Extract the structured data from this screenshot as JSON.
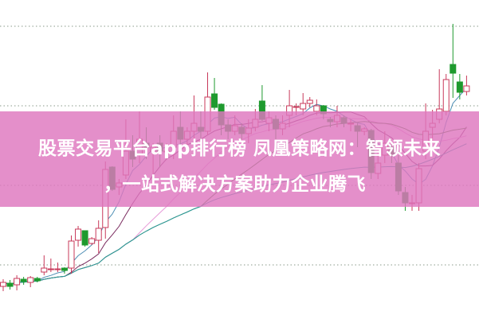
{
  "banner": {
    "title_lines": [
      "股票交易平台app排行榜 凤凰策略网：智领未来",
      "，一站式解决方案助力企业腾飞"
    ],
    "color": "#de76be"
  },
  "chart_data": {
    "type": "candlestick",
    "title": "",
    "xlabel": "",
    "ylabel": "",
    "ylim": [
      0,
      40
    ],
    "grid": true,
    "legend": "none",
    "colors": {
      "up": "#c8385a",
      "down": "#1e9a2e",
      "grid": "#8a9a8a"
    },
    "moving_averages": [
      {
        "period": 5,
        "color": "#4f8fb5"
      },
      {
        "period": 10,
        "color": "#7a2a5e"
      },
      {
        "period": 20,
        "color": "#e79ad8"
      },
      {
        "period": 30,
        "color": "#3a7a2a"
      },
      {
        "period": 60,
        "color": "#2a9aa0"
      }
    ],
    "candles": [
      [
        4.0,
        4.9,
        3.4,
        4.5
      ],
      [
        4.4,
        4.8,
        3.6,
        4.0
      ],
      [
        4.2,
        5.4,
        3.5,
        5.0
      ],
      [
        4.9,
        5.2,
        4.2,
        4.6
      ],
      [
        4.5,
        5.3,
        3.9,
        5.1
      ],
      [
        5.0,
        5.2,
        4.5,
        4.7
      ],
      [
        5.8,
        7.9,
        5.4,
        6.3
      ],
      [
        6.2,
        7.5,
        5.8,
        6.2
      ],
      [
        6.2,
        7.0,
        5.8,
        6.2
      ],
      [
        6.3,
        6.4,
        5.6,
        6.0
      ],
      [
        6.3,
        10.4,
        5.6,
        9.7
      ],
      [
        9.8,
        11.6,
        9.0,
        11.2
      ],
      [
        11.0,
        11.0,
        9.0,
        9.2
      ],
      [
        9.4,
        10.2,
        9.2,
        10.0
      ],
      [
        9.8,
        12.3,
        8.2,
        11.3
      ],
      [
        11.4,
        19.7,
        10.0,
        18.7
      ],
      [
        19.0,
        19.1,
        16.0,
        16.2
      ],
      [
        16.5,
        17.5,
        15.5,
        17.0
      ],
      [
        18.0,
        25.0,
        17.5,
        21.0
      ],
      [
        21.0,
        23.0,
        19.0,
        20.0
      ],
      [
        20.5,
        26.0,
        19.5,
        22.5
      ],
      [
        22.0,
        24.0,
        20.0,
        21.5
      ],
      [
        21.0,
        22.0,
        18.0,
        21.5
      ],
      [
        22.0,
        23.0,
        19.0,
        21.0
      ],
      [
        21.0,
        22.0,
        20.0,
        21.0
      ],
      [
        21.5,
        25.5,
        20.0,
        23.5
      ],
      [
        24.0,
        26.0,
        21.0,
        22.5
      ],
      [
        22.5,
        24.0,
        21.0,
        23.5
      ],
      [
        23.5,
        28.0,
        22.0,
        24.5
      ],
      [
        24.0,
        26.0,
        22.0,
        23.5
      ],
      [
        23.5,
        30.9,
        23.0,
        27.8
      ],
      [
        28.2,
        30.2,
        26.2,
        26.5
      ],
      [
        26.9,
        27.0,
        23.0,
        24.3
      ],
      [
        24.3,
        25.0,
        22.5,
        23.5
      ],
      [
        23.5,
        25.5,
        23.0,
        24.2
      ],
      [
        24.0,
        24.5,
        22.5,
        23.2
      ],
      [
        23.2,
        25.0,
        22.0,
        23.9
      ],
      [
        24.0,
        26.3,
        23.5,
        25.0
      ],
      [
        27.3,
        29.3,
        24.8,
        25.0
      ],
      [
        24.5,
        26.0,
        23.5,
        25.2
      ],
      [
        25.0,
        25.5,
        22.5,
        23.8
      ],
      [
        23.8,
        25.5,
        23.0,
        24.5
      ],
      [
        25.5,
        28.7,
        24.0,
        26.7
      ],
      [
        26.6,
        27.0,
        25.5,
        26.6
      ],
      [
        26.3,
        28.3,
        25.5,
        27.0
      ],
      [
        27.0,
        27.8,
        26.5,
        27.4
      ],
      [
        26.0,
        27.5,
        25.5,
        26.7
      ],
      [
        26.7,
        26.8,
        25.0,
        25.7
      ],
      [
        25.0,
        25.3,
        24.0,
        24.7
      ],
      [
        24.7,
        26.7,
        24.0,
        25.5
      ],
      [
        25.2,
        25.5,
        24.0,
        24.5
      ],
      [
        24.5,
        25.0,
        23.5,
        24.5
      ],
      [
        24.2,
        24.5,
        21.5,
        23.5
      ],
      [
        23.5,
        24.0,
        23.0,
        23.8
      ],
      [
        23.6,
        23.8,
        17.5,
        18.3
      ],
      [
        18.2,
        21.0,
        17.5,
        19.5
      ],
      [
        20.5,
        23.5,
        19.5,
        22.0
      ],
      [
        21.5,
        22.0,
        19.5,
        20.5
      ],
      [
        19.5,
        20.5,
        15.5,
        16.0
      ],
      [
        15.8,
        16.5,
        13.5,
        14.5
      ],
      [
        14.5,
        15.5,
        13.5,
        14.5
      ],
      [
        14.5,
        19.5,
        13.5,
        18.8
      ],
      [
        21.0,
        27.0,
        20.0,
        23.5
      ],
      [
        24.0,
        26.2,
        22.0,
        24.5
      ],
      [
        25.0,
        31.3,
        24.5,
        26.3
      ],
      [
        26.0,
        30.7,
        25.5,
        30.0
      ],
      [
        31.9,
        37.0,
        27.7,
        30.8
      ],
      [
        29.7,
        30.7,
        27.5,
        28.4
      ],
      [
        28.5,
        30.5,
        28.0,
        29.2
      ]
    ]
  }
}
